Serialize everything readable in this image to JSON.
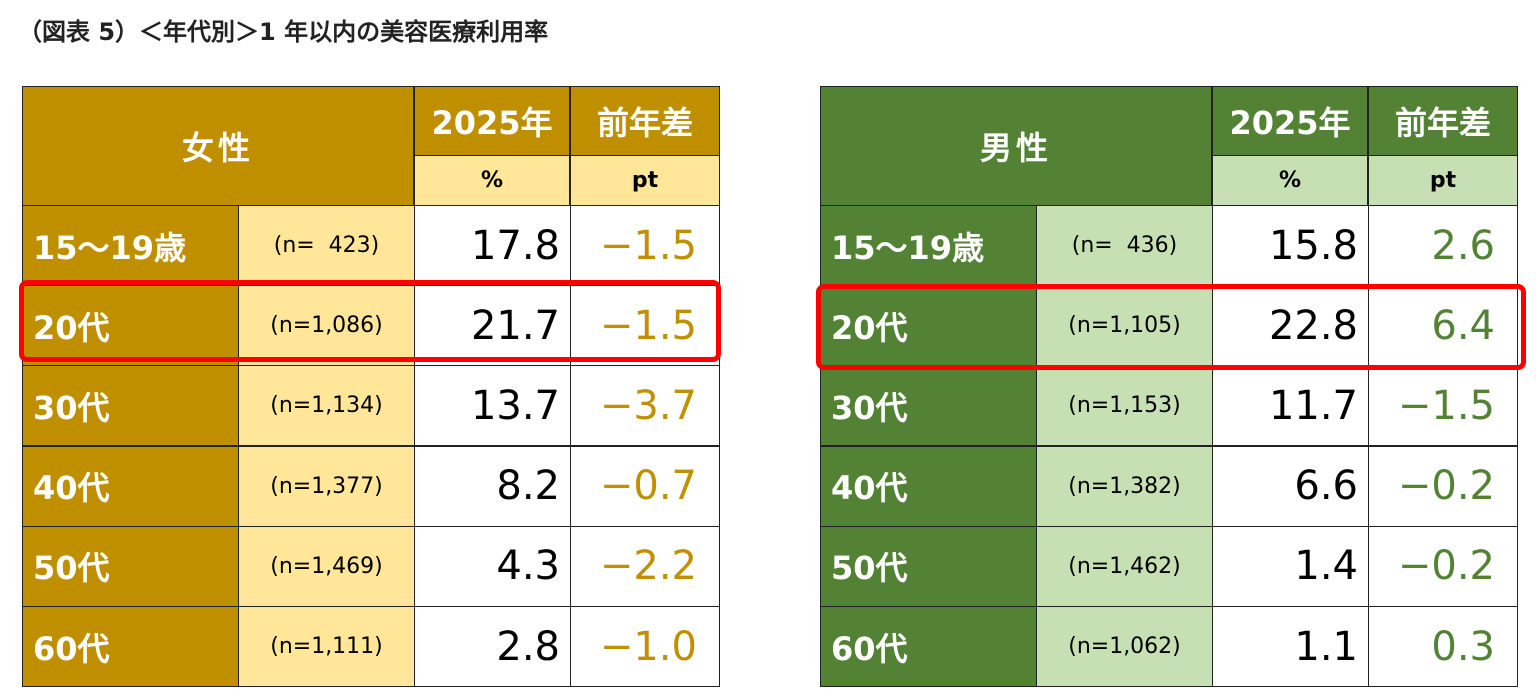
{
  "title": "（図表 5）＜年代別＞1 年以内の美容医療利用率",
  "tables": [
    {
      "group": "女性",
      "header_year": "2025年",
      "header_diff": "前年差",
      "unit_value": "%",
      "unit_diff": "pt",
      "rows": [
        [
          "15～19歳",
          "(n=  423)",
          "17.8",
          "−1.5"
        ],
        [
          "20代",
          "(n=1,086)",
          "21.7",
          "−1.5"
        ],
        [
          "30代",
          "(n=1,134)",
          "13.7",
          "−3.7"
        ],
        [
          "40代",
          "(n=1,377)",
          "8.2",
          "−0.7"
        ],
        [
          "50代",
          "(n=1,469)",
          "4.3",
          "−2.2"
        ],
        [
          "60代",
          "(n=1,111)",
          "2.8",
          "−1.0"
        ]
      ]
    },
    {
      "group": "男性",
      "header_year": "2025年",
      "header_diff": "前年差",
      "unit_value": "%",
      "unit_diff": "pt",
      "rows": [
        [
          "15～19歳",
          "(n=  436)",
          "15.8",
          "2.6"
        ],
        [
          "20代",
          "(n=1,105)",
          "22.8",
          "6.4"
        ],
        [
          "30代",
          "(n=1,153)",
          "11.7",
          "−1.5"
        ],
        [
          "40代",
          "(n=1,382)",
          "6.6",
          "−0.2"
        ],
        [
          "50代",
          "(n=1,462)",
          "1.4",
          "−0.2"
        ],
        [
          "60代",
          "(n=1,062)",
          "1.1",
          "0.3"
        ]
      ]
    }
  ]
}
